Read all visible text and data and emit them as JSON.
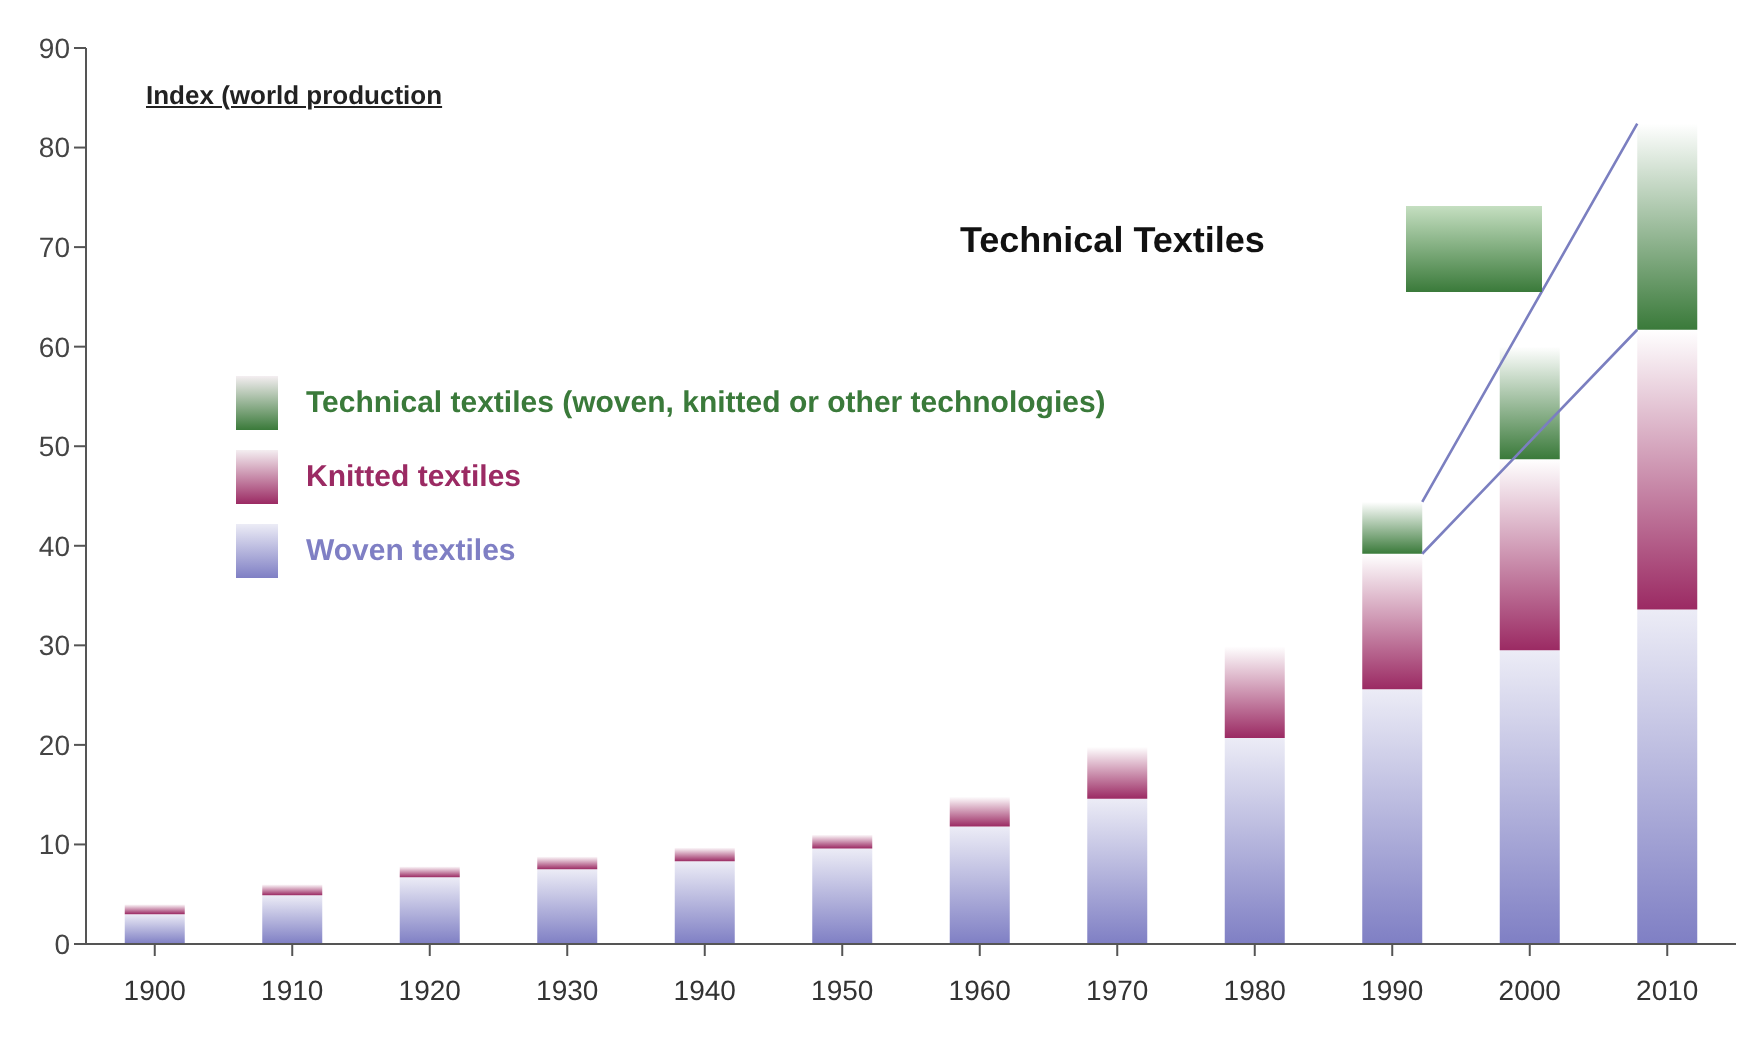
{
  "chart_data": {
    "type": "bar",
    "stacked": true,
    "ylabel": "Index (world production",
    "categories": [
      "1900",
      "1910",
      "1920",
      "1930",
      "1940",
      "1950",
      "1960",
      "1970",
      "1980",
      "1990",
      "2000",
      "2010"
    ],
    "series": [
      {
        "name": "Woven textiles",
        "color": "#7f7fc4",
        "values": [
          3.0,
          4.9,
          6.7,
          7.5,
          8.3,
          9.6,
          11.8,
          14.6,
          20.7,
          25.6,
          29.5,
          33.6
        ]
      },
      {
        "name": "Knitted textiles",
        "color": "#9b2a63",
        "values": [
          1.0,
          1.1,
          1.1,
          1.3,
          1.4,
          1.4,
          3.0,
          5.2,
          9.2,
          13.6,
          19.2,
          28.1
        ]
      },
      {
        "name": "Technical textiles (woven, knitted or other technologies)",
        "color": "#3a7a3a",
        "values": [
          null,
          null,
          null,
          null,
          null,
          null,
          null,
          null,
          null,
          5.2,
          11.3,
          20.7
        ]
      }
    ],
    "ylim": [
      0,
      90
    ],
    "yticks": [
      0,
      10,
      20,
      30,
      40,
      50,
      60,
      70,
      80,
      90
    ],
    "legend": "left",
    "annotations": [
      "Technical Textiles"
    ]
  }
}
